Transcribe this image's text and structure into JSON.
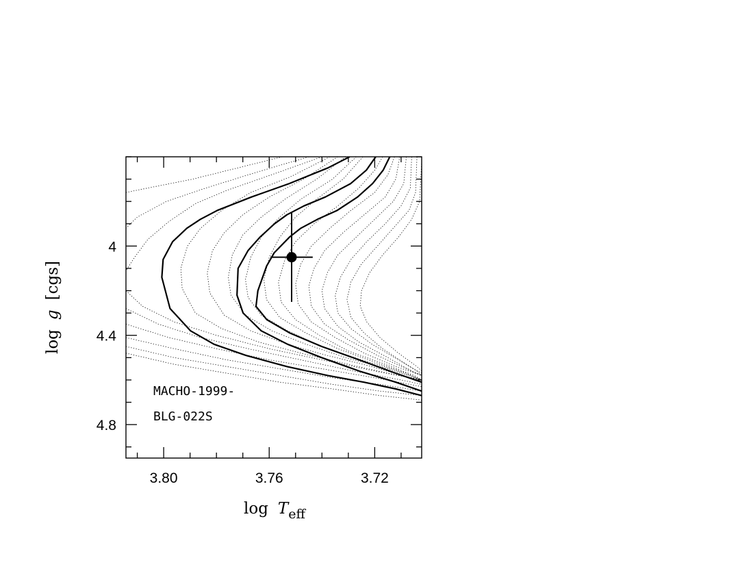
{
  "chart_data": {
    "type": "line",
    "xlabel": {
      "main": "log",
      "symbol": "T",
      "sub": "eff"
    },
    "ylabel": {
      "main": "log",
      "symbol": "g",
      "unit": "[cgs]"
    },
    "x_reversed": true,
    "xlim": [
      3.8143,
      3.7022
    ],
    "ylim": [
      3.6,
      4.95
    ],
    "x_ticks": [
      3.8,
      3.76,
      3.72
    ],
    "x_tick_labels": [
      "3.80",
      "3.76",
      "3.72"
    ],
    "x_minor_step": 0.01,
    "y_ticks": [
      4.0,
      4.4,
      4.8
    ],
    "y_tick_labels": [
      "4",
      "4.4",
      "4.8"
    ],
    "y_minor_step": 0.1,
    "annotations": [
      "MACHO-1999-",
      "BLG-022S"
    ],
    "solid_curves": [
      [
        [
          3.7295,
          3.6
        ],
        [
          3.7378,
          3.65
        ],
        [
          3.7524,
          3.72
        ],
        [
          3.7667,
          3.78
        ],
        [
          3.7796,
          3.84
        ],
        [
          3.7861,
          3.88
        ],
        [
          3.7912,
          3.92
        ],
        [
          3.7966,
          3.98
        ],
        [
          3.8002,
          4.06
        ],
        [
          3.8007,
          4.14
        ],
        [
          3.7976,
          4.28
        ],
        [
          3.7898,
          4.38
        ],
        [
          3.7809,
          4.44
        ],
        [
          3.7688,
          4.49
        ],
        [
          3.7532,
          4.54
        ],
        [
          3.7378,
          4.58
        ],
        [
          3.7241,
          4.61
        ],
        [
          3.712,
          4.64
        ],
        [
          3.7022,
          4.67
        ]
      ],
      [
        [
          3.7196,
          3.6
        ],
        [
          3.7232,
          3.66
        ],
        [
          3.7291,
          3.72
        ],
        [
          3.7387,
          3.78
        ],
        [
          3.7468,
          3.82
        ],
        [
          3.7533,
          3.86
        ],
        [
          3.758,
          3.9
        ],
        [
          3.7635,
          3.96
        ],
        [
          3.768,
          4.02
        ],
        [
          3.7718,
          4.1
        ],
        [
          3.7722,
          4.22
        ],
        [
          3.7699,
          4.3
        ],
        [
          3.763,
          4.38
        ],
        [
          3.753,
          4.44
        ],
        [
          3.7401,
          4.5
        ],
        [
          3.7259,
          4.56
        ],
        [
          3.712,
          4.61
        ],
        [
          3.7022,
          4.65
        ]
      ],
      [
        [
          3.7143,
          3.6
        ],
        [
          3.7168,
          3.66
        ],
        [
          3.7208,
          3.72
        ],
        [
          3.7265,
          3.78
        ],
        [
          3.7342,
          3.84
        ],
        [
          3.7417,
          3.88
        ],
        [
          3.748,
          3.92
        ],
        [
          3.7523,
          3.96
        ],
        [
          3.7581,
          4.03
        ],
        [
          3.761,
          4.09
        ],
        [
          3.7643,
          4.2
        ],
        [
          3.765,
          4.27
        ],
        [
          3.7609,
          4.33
        ],
        [
          3.7521,
          4.39
        ],
        [
          3.7401,
          4.45
        ],
        [
          3.7259,
          4.51
        ],
        [
          3.712,
          4.57
        ],
        [
          3.7022,
          4.61
        ]
      ]
    ],
    "dotted_curves": [
      [
        [
          3.755,
          3.6
        ],
        [
          3.772,
          3.65
        ],
        [
          3.789,
          3.7
        ],
        [
          3.806,
          3.74
        ],
        [
          3.8143,
          3.76
        ]
      ],
      [
        [
          3.745,
          3.6
        ],
        [
          3.765,
          3.67
        ],
        [
          3.784,
          3.74
        ],
        [
          3.799,
          3.8
        ],
        [
          3.81,
          3.87
        ],
        [
          3.8143,
          3.92
        ]
      ],
      [
        [
          3.74,
          3.6
        ],
        [
          3.759,
          3.68
        ],
        [
          3.776,
          3.75
        ],
        [
          3.788,
          3.81
        ],
        [
          3.798,
          3.89
        ],
        [
          3.806,
          3.97
        ],
        [
          3.811,
          4.05
        ],
        [
          3.8143,
          4.11
        ]
      ],
      [
        [
          3.737,
          3.6
        ],
        [
          3.752,
          3.69
        ],
        [
          3.767,
          3.76
        ],
        [
          3.778,
          3.84
        ],
        [
          3.786,
          3.92
        ],
        [
          3.791,
          4.0
        ],
        [
          3.7935,
          4.1
        ],
        [
          3.793,
          4.19
        ],
        [
          3.788,
          4.3
        ],
        [
          3.778,
          4.37
        ],
        [
          3.764,
          4.43
        ],
        [
          3.748,
          4.48
        ],
        [
          3.73,
          4.53
        ],
        [
          3.715,
          4.57
        ],
        [
          3.7022,
          4.6
        ]
      ],
      [
        [
          3.734,
          3.6
        ],
        [
          3.747,
          3.7
        ],
        [
          3.76,
          3.78
        ],
        [
          3.77,
          3.86
        ],
        [
          3.777,
          3.94
        ],
        [
          3.7815,
          4.02
        ],
        [
          3.7835,
          4.12
        ],
        [
          3.7825,
          4.21
        ],
        [
          3.777,
          4.31
        ],
        [
          3.767,
          4.38
        ],
        [
          3.753,
          4.44
        ],
        [
          3.738,
          4.49
        ],
        [
          3.721,
          4.54
        ],
        [
          3.71,
          4.58
        ],
        [
          3.7022,
          4.6
        ]
      ],
      [
        [
          3.731,
          3.6
        ],
        [
          3.742,
          3.7
        ],
        [
          3.754,
          3.79
        ],
        [
          3.763,
          3.87
        ],
        [
          3.77,
          3.95
        ],
        [
          3.774,
          4.04
        ],
        [
          3.7755,
          4.14
        ],
        [
          3.7745,
          4.22
        ],
        [
          3.769,
          4.31
        ],
        [
          3.759,
          4.38
        ],
        [
          3.746,
          4.44
        ],
        [
          3.731,
          4.5
        ],
        [
          3.715,
          4.55
        ],
        [
          3.7022,
          4.6
        ]
      ],
      [
        [
          3.727,
          3.6
        ],
        [
          3.736,
          3.7
        ],
        [
          3.748,
          3.79
        ],
        [
          3.756,
          3.87
        ],
        [
          3.763,
          3.96
        ],
        [
          3.767,
          4.05
        ],
        [
          3.769,
          4.15
        ],
        [
          3.768,
          4.23
        ],
        [
          3.763,
          4.31
        ],
        [
          3.753,
          4.38
        ],
        [
          3.74,
          4.45
        ],
        [
          3.725,
          4.51
        ],
        [
          3.711,
          4.56
        ],
        [
          3.7022,
          4.6
        ]
      ],
      [
        [
          3.7245,
          3.6
        ],
        [
          3.732,
          3.7
        ],
        [
          3.742,
          3.79
        ],
        [
          3.75,
          3.87
        ],
        [
          3.756,
          3.96
        ],
        [
          3.76,
          4.05
        ],
        [
          3.762,
          4.15
        ],
        [
          3.761,
          4.24
        ],
        [
          3.756,
          4.32
        ],
        [
          3.746,
          4.39
        ],
        [
          3.734,
          4.46
        ],
        [
          3.72,
          4.52
        ],
        [
          3.708,
          4.57
        ],
        [
          3.7022,
          4.6
        ]
      ],
      [
        [
          3.717,
          3.6
        ],
        [
          3.72,
          3.66
        ],
        [
          3.726,
          3.74
        ],
        [
          3.734,
          3.82
        ],
        [
          3.743,
          3.9
        ],
        [
          3.75,
          3.98
        ],
        [
          3.754,
          4.06
        ],
        [
          3.7565,
          4.16
        ],
        [
          3.7555,
          4.25
        ],
        [
          3.75,
          4.33
        ],
        [
          3.741,
          4.4
        ],
        [
          3.73,
          4.47
        ],
        [
          3.716,
          4.53
        ],
        [
          3.705,
          4.58
        ],
        [
          3.7022,
          4.6
        ]
      ],
      [
        [
          3.7125,
          3.6
        ],
        [
          3.715,
          3.68
        ],
        [
          3.72,
          3.76
        ],
        [
          3.729,
          3.84
        ],
        [
          3.737,
          3.92
        ],
        [
          3.744,
          4.0
        ],
        [
          3.748,
          4.08
        ],
        [
          3.75,
          4.17
        ],
        [
          3.749,
          4.26
        ],
        [
          3.744,
          4.34
        ],
        [
          3.735,
          4.41
        ],
        [
          3.724,
          4.48
        ],
        [
          3.712,
          4.54
        ],
        [
          3.7022,
          4.58
        ]
      ],
      [
        [
          3.7105,
          3.6
        ],
        [
          3.712,
          3.7
        ],
        [
          3.716,
          3.78
        ],
        [
          3.724,
          3.86
        ],
        [
          3.732,
          3.94
        ],
        [
          3.739,
          4.02
        ],
        [
          3.743,
          4.1
        ],
        [
          3.745,
          4.18
        ],
        [
          3.744,
          4.27
        ],
        [
          3.739,
          4.35
        ],
        [
          3.73,
          4.42
        ],
        [
          3.719,
          4.49
        ],
        [
          3.708,
          4.55
        ],
        [
          3.7022,
          4.58
        ]
      ],
      [
        [
          3.708,
          3.6
        ],
        [
          3.709,
          3.72
        ],
        [
          3.713,
          3.8
        ],
        [
          3.72,
          3.88
        ],
        [
          3.727,
          3.96
        ],
        [
          3.734,
          4.04
        ],
        [
          3.738,
          4.12
        ],
        [
          3.74,
          4.2
        ],
        [
          3.739,
          4.28
        ],
        [
          3.734,
          4.36
        ],
        [
          3.726,
          4.43
        ],
        [
          3.715,
          4.5
        ],
        [
          3.706,
          4.56
        ],
        [
          3.7022,
          4.58
        ]
      ],
      [
        [
          3.706,
          3.6
        ],
        [
          3.7065,
          3.74
        ],
        [
          3.71,
          3.82
        ],
        [
          3.716,
          3.9
        ],
        [
          3.723,
          3.98
        ],
        [
          3.729,
          4.06
        ],
        [
          3.733,
          4.14
        ],
        [
          3.735,
          4.22
        ],
        [
          3.734,
          4.3
        ],
        [
          3.729,
          4.37
        ],
        [
          3.721,
          4.44
        ],
        [
          3.711,
          4.51
        ],
        [
          3.704,
          4.56
        ],
        [
          3.7022,
          4.58
        ]
      ],
      [
        [
          3.704,
          3.6
        ],
        [
          3.7045,
          3.76
        ],
        [
          3.707,
          3.84
        ],
        [
          3.713,
          3.92
        ],
        [
          3.719,
          4.0
        ],
        [
          3.725,
          4.08
        ],
        [
          3.729,
          4.16
        ],
        [
          3.7305,
          4.24
        ],
        [
          3.729,
          4.32
        ],
        [
          3.724,
          4.39
        ],
        [
          3.717,
          4.46
        ],
        [
          3.708,
          4.53
        ],
        [
          3.7022,
          4.57
        ]
      ],
      [
        [
          3.7022,
          3.62
        ],
        [
          3.703,
          3.8
        ],
        [
          3.706,
          3.88
        ],
        [
          3.711,
          3.96
        ],
        [
          3.717,
          4.04
        ],
        [
          3.722,
          4.12
        ],
        [
          3.725,
          4.2
        ],
        [
          3.7255,
          4.27
        ],
        [
          3.723,
          4.34
        ],
        [
          3.718,
          4.41
        ],
        [
          3.711,
          4.48
        ],
        [
          3.704,
          4.54
        ],
        [
          3.7022,
          4.56
        ]
      ],
      [
        [
          3.8143,
          4.2
        ],
        [
          3.808,
          4.27
        ],
        [
          3.796,
          4.34
        ],
        [
          3.78,
          4.4
        ],
        [
          3.76,
          4.46
        ],
        [
          3.74,
          4.51
        ],
        [
          3.72,
          4.56
        ],
        [
          3.7022,
          4.6
        ]
      ],
      [
        [
          3.8143,
          4.28
        ],
        [
          3.802,
          4.35
        ],
        [
          3.786,
          4.41
        ],
        [
          3.768,
          4.46
        ],
        [
          3.748,
          4.51
        ],
        [
          3.728,
          4.56
        ],
        [
          3.71,
          4.6
        ],
        [
          3.7022,
          4.62
        ]
      ],
      [
        [
          3.8143,
          4.35
        ],
        [
          3.798,
          4.41
        ],
        [
          3.78,
          4.46
        ],
        [
          3.76,
          4.51
        ],
        [
          3.74,
          4.55
        ],
        [
          3.72,
          4.59
        ],
        [
          3.7022,
          4.63
        ]
      ],
      [
        [
          3.8143,
          4.41
        ],
        [
          3.796,
          4.46
        ],
        [
          3.776,
          4.51
        ],
        [
          3.756,
          4.55
        ],
        [
          3.736,
          4.59
        ],
        [
          3.718,
          4.62
        ],
        [
          3.7022,
          4.65
        ]
      ],
      [
        [
          3.8143,
          4.45
        ],
        [
          3.796,
          4.5
        ],
        [
          3.776,
          4.54
        ],
        [
          3.756,
          4.58
        ],
        [
          3.736,
          4.62
        ],
        [
          3.718,
          4.65
        ],
        [
          3.7022,
          4.67
        ]
      ],
      [
        [
          3.8143,
          4.48
        ],
        [
          3.796,
          4.53
        ],
        [
          3.776,
          4.57
        ],
        [
          3.756,
          4.61
        ],
        [
          3.736,
          4.64
        ],
        [
          3.718,
          4.67
        ],
        [
          3.7022,
          4.69
        ]
      ]
    ],
    "data_point": {
      "x": 3.7515,
      "y": 4.05,
      "x_err_minus": 0.008,
      "x_err_plus": 0.008,
      "y_err_minus": 0.2,
      "y_err_plus": 0.2
    }
  }
}
